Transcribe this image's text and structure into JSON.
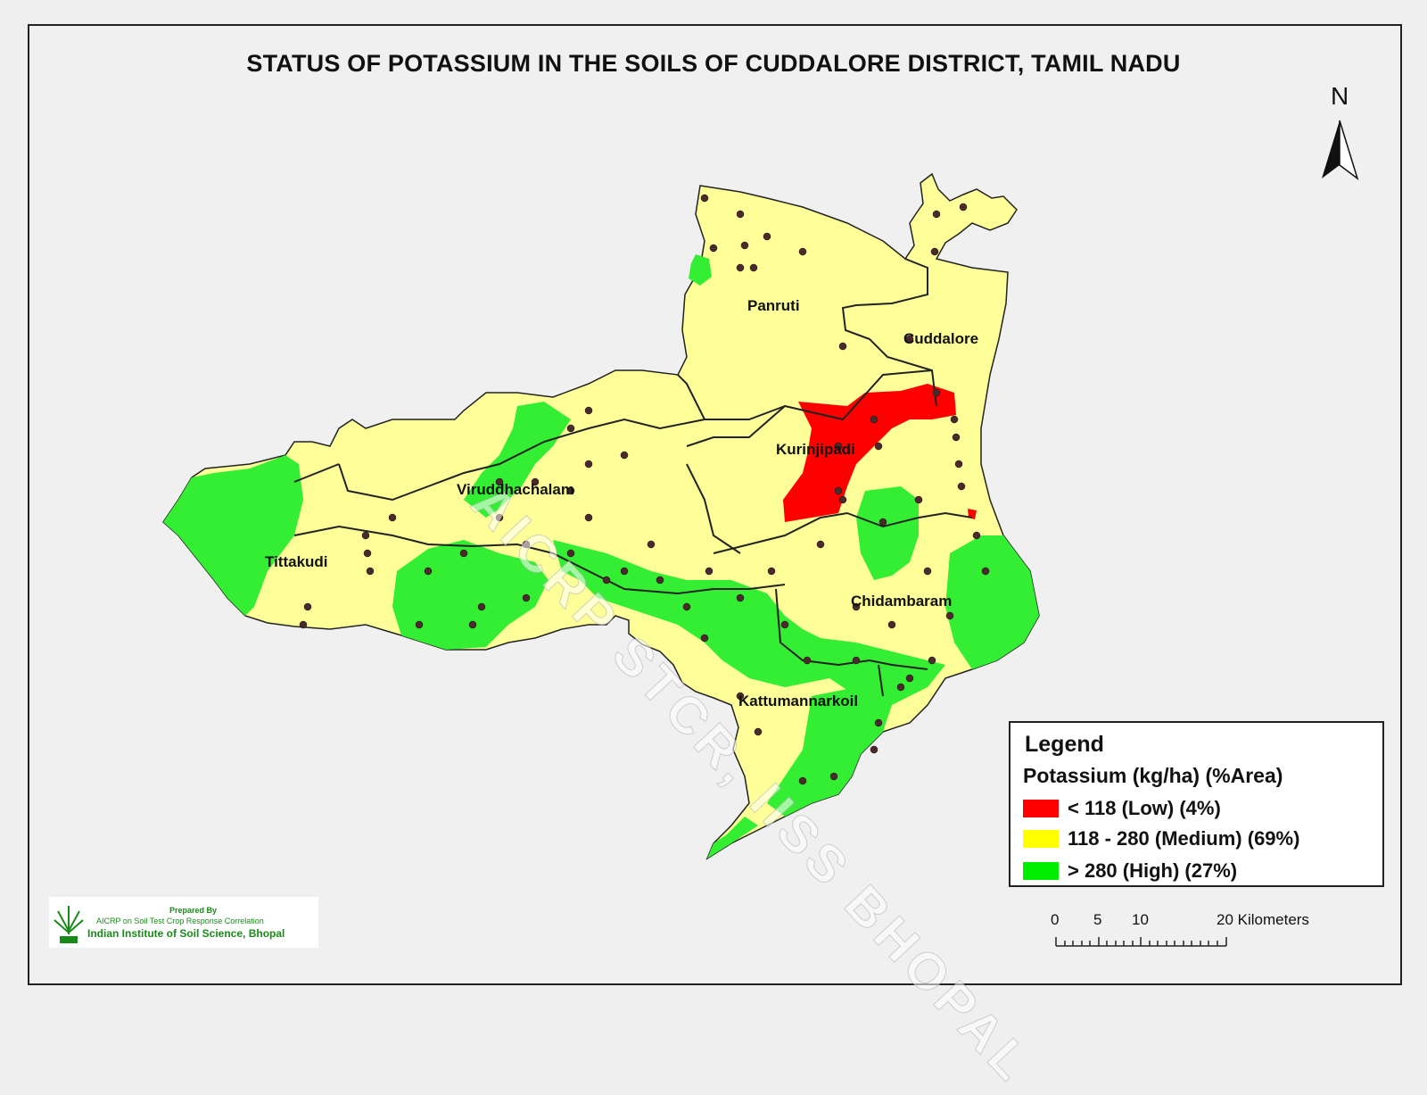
{
  "title": "STATUS OF POTASSIUM  IN THE SOILS OF CUDDALORE DISTRICT,  TAMIL NADU",
  "north_label": "N",
  "watermark": "AICRP STCR, IISS BHOPAL",
  "districts": [
    {
      "name": "Panruti"
    },
    {
      "name": "Cuddalore"
    },
    {
      "name": "Kurinjipadi"
    },
    {
      "name": "Viruddhachalam"
    },
    {
      "name": "Tittakudi"
    },
    {
      "name": "Chidambaram"
    },
    {
      "name": "Kattumannarkoil"
    }
  ],
  "legend": {
    "title": "Legend",
    "subtitle": "Potassium (kg/ha) (%Area)",
    "items": [
      {
        "label": "< 118 (Low) (4%)",
        "color": "#ff0000",
        "percent_area": 4
      },
      {
        "label": "118 - 280  (Medium) (69%)",
        "color": "#ffff00",
        "percent_area": 69
      },
      {
        "label": "> 280  (High) (27%)",
        "color": "#00ee00",
        "percent_area": 27
      }
    ]
  },
  "scale": {
    "ticks": [
      "0",
      "5",
      "10",
      "20 Kilometers"
    ]
  },
  "credit": {
    "line1": "Prepared By",
    "line2": "AICRP on Soil Test Crop Response Correlation",
    "line3": "Indian Institute of Soil Science, Bhopal"
  },
  "colors": {
    "low": "#ff0000",
    "medium": "#ffff99",
    "high": "#33ee33",
    "sample_point": "#4a2a2a"
  }
}
